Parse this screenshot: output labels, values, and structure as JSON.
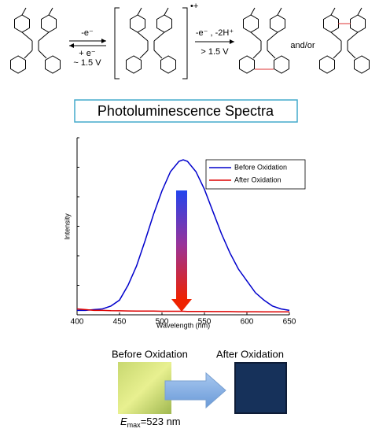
{
  "scheme": {
    "step1_forward": "-e⁻",
    "step1_back": "+ e⁻",
    "step1_potential": "~ 1.5 V",
    "radical_cation": "•+",
    "step2_reagents": "-e⁻ , -2H⁺",
    "step2_potential": "> 1.5 V",
    "connector": "and/or"
  },
  "chart_data": {
    "type": "line",
    "title": "Photoluminescence Spectra",
    "x_label": "Wavelength (nm)",
    "y_label": "Intensity",
    "x": [
      400,
      410,
      420,
      430,
      440,
      450,
      460,
      470,
      480,
      490,
      500,
      510,
      520,
      525,
      530,
      540,
      550,
      560,
      570,
      580,
      590,
      600,
      610,
      620,
      630,
      640,
      650
    ],
    "series": [
      {
        "name": "Before Oxidation",
        "color": "#0000cc",
        "values": [
          0.03,
          0.03,
          0.035,
          0.04,
          0.06,
          0.1,
          0.2,
          0.33,
          0.5,
          0.68,
          0.84,
          0.97,
          1.04,
          1.05,
          1.04,
          0.97,
          0.85,
          0.7,
          0.55,
          0.42,
          0.31,
          0.23,
          0.15,
          0.1,
          0.06,
          0.04,
          0.03
        ]
      },
      {
        "name": "After Oxidation",
        "color": "#dd0000",
        "values": [
          0.04,
          0.035,
          0.03,
          0.03,
          0.028,
          0.027,
          0.026,
          0.025,
          0.025,
          0.025,
          0.024,
          0.024,
          0.024,
          0.024,
          0.023,
          0.023,
          0.023,
          0.022,
          0.022,
          0.022,
          0.021,
          0.021,
          0.021,
          0.02,
          0.02,
          0.02,
          0.02
        ]
      }
    ],
    "xlim": [
      400,
      650
    ],
    "xticks": [
      400,
      450,
      500,
      550,
      600,
      650
    ],
    "ylim": [
      0,
      1.2
    ],
    "yticks": [
      0,
      0.2,
      0.4,
      0.6,
      0.8,
      1,
      1.2
    ],
    "legend": "upper right"
  },
  "photos": {
    "before": "Before Oxidation",
    "after": "After Oxidation",
    "emax_symbol": "E",
    "emax_subscript": "max",
    "emax_value": "=523 nm"
  }
}
